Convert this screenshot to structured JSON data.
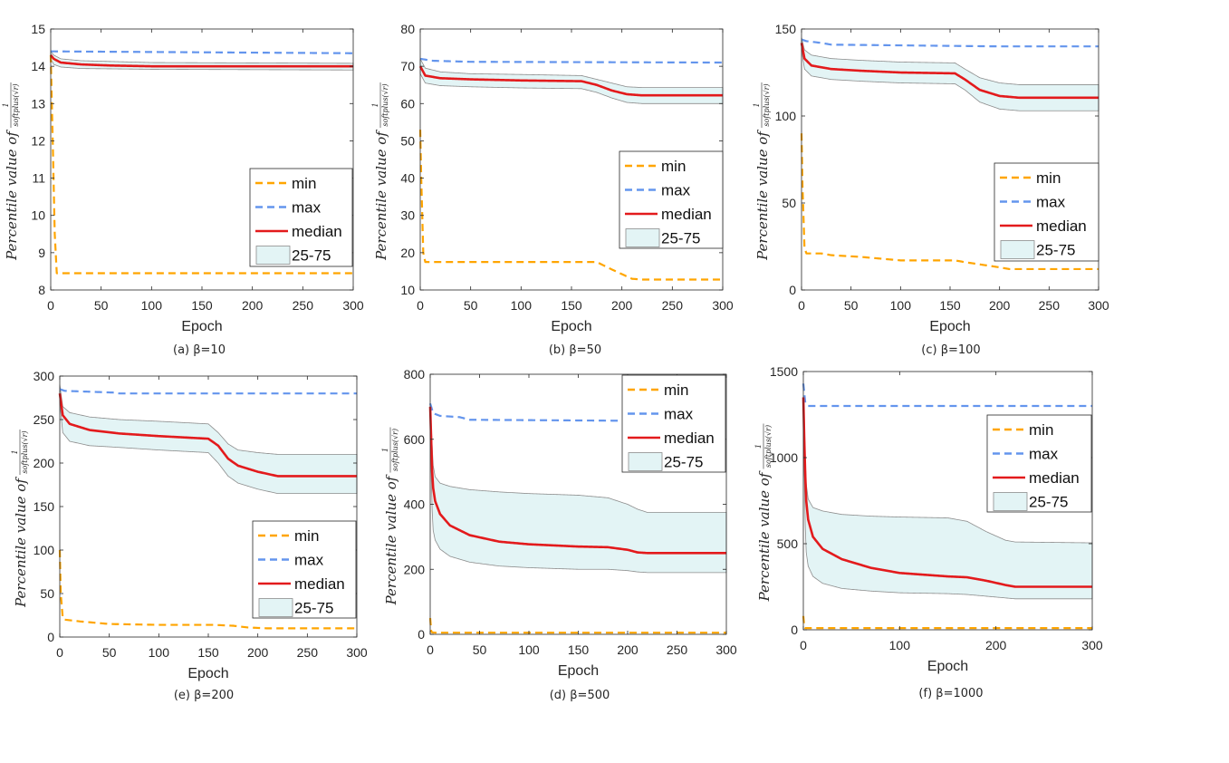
{
  "chart_data": [
    {
      "type": "line",
      "id": "a",
      "caption": "(a) β=10",
      "xlabel": "Epoch",
      "ylabel": "Percentile value of",
      "ylabel_fraction": "1 / softplus(√r)",
      "xlim": [
        0,
        300
      ],
      "ylim": [
        8,
        15
      ],
      "xticks": [
        0,
        50,
        100,
        150,
        200,
        250,
        300
      ],
      "yticks": [
        8,
        9,
        10,
        11,
        12,
        13,
        14,
        15
      ],
      "legend": {
        "position": "lower-right",
        "labels": [
          "min",
          "max",
          "median",
          "25-75"
        ]
      },
      "series": [
        {
          "name": "min",
          "x": [
            0,
            2,
            4,
            6,
            300
          ],
          "y": [
            14.3,
            12,
            9.5,
            8.45,
            8.45
          ]
        },
        {
          "name": "max",
          "x": [
            0,
            300
          ],
          "y": [
            14.4,
            14.35
          ]
        },
        {
          "name": "median",
          "x": [
            0,
            3,
            10,
            30,
            60,
            100,
            150,
            200,
            300
          ],
          "y": [
            14.3,
            14.2,
            14.1,
            14.05,
            14.02,
            14.0,
            14.0,
            14.0,
            14.0
          ]
        },
        {
          "name": "p25",
          "x": [
            0,
            3,
            10,
            30,
            100,
            300
          ],
          "y": [
            14.2,
            14.05,
            13.98,
            13.94,
            13.92,
            13.9
          ]
        },
        {
          "name": "p75",
          "x": [
            0,
            3,
            10,
            30,
            100,
            300
          ],
          "y": [
            14.4,
            14.3,
            14.2,
            14.15,
            14.1,
            14.08
          ]
        }
      ]
    },
    {
      "type": "line",
      "id": "b",
      "caption": "(b) β=50",
      "xlabel": "Epoch",
      "ylabel": "Percentile value of",
      "ylabel_fraction": "1 / softplus(√r)",
      "xlim": [
        0,
        300
      ],
      "ylim": [
        10,
        80
      ],
      "xticks": [
        0,
        50,
        100,
        150,
        200,
        250,
        300
      ],
      "yticks": [
        10,
        20,
        30,
        40,
        50,
        60,
        70,
        80
      ],
      "legend": {
        "position": "lower-right",
        "labels": [
          "min",
          "max",
          "median",
          "25-75"
        ]
      },
      "series": [
        {
          "name": "min",
          "x": [
            0,
            1,
            3,
            5,
            175,
            190,
            210,
            220,
            300
          ],
          "y": [
            53,
            40,
            20,
            17.5,
            17.5,
            15.5,
            13,
            12.8,
            12.8
          ]
        },
        {
          "name": "max",
          "x": [
            0,
            5,
            10,
            50,
            300
          ],
          "y": [
            72,
            71.8,
            71.5,
            71.2,
            71
          ]
        },
        {
          "name": "median",
          "x": [
            0,
            5,
            20,
            50,
            100,
            160,
            175,
            190,
            205,
            220,
            300
          ],
          "y": [
            70,
            67.5,
            66.8,
            66.5,
            66.2,
            66,
            65,
            63.5,
            62.5,
            62.2,
            62.2
          ]
        },
        {
          "name": "p25",
          "x": [
            0,
            5,
            20,
            50,
            100,
            160,
            175,
            190,
            205,
            220,
            300
          ],
          "y": [
            68,
            65.5,
            64.8,
            64.5,
            64.2,
            64,
            63,
            61.5,
            60.3,
            60,
            60
          ]
        },
        {
          "name": "p75",
          "x": [
            0,
            5,
            20,
            50,
            100,
            160,
            175,
            190,
            205,
            220,
            300
          ],
          "y": [
            72,
            69.5,
            68.5,
            68,
            67.8,
            67.5,
            66.5,
            65.5,
            64.5,
            64.3,
            64.3
          ]
        }
      ]
    },
    {
      "type": "line",
      "id": "c",
      "caption": "(c) β=100",
      "xlabel": "Epoch",
      "ylabel": "Percentile value of",
      "ylabel_fraction": "1 / softplus(√r)",
      "xlim": [
        0,
        300
      ],
      "ylim": [
        0,
        150
      ],
      "xticks": [
        0,
        50,
        100,
        150,
        200,
        250,
        300
      ],
      "yticks": [
        0,
        50,
        100,
        150
      ],
      "legend": {
        "position": "lower-right",
        "labels": [
          "min",
          "max",
          "median",
          "25-75"
        ]
      },
      "series": [
        {
          "name": "min",
          "x": [
            0,
            1,
            3,
            5,
            20,
            30,
            60,
            100,
            155,
            165,
            200,
            210,
            300
          ],
          "y": [
            90,
            60,
            24,
            21,
            21,
            20,
            19,
            17,
            17,
            16,
            13,
            12,
            12
          ]
        },
        {
          "name": "max",
          "x": [
            0,
            5,
            20,
            30,
            200,
            300
          ],
          "y": [
            144,
            143,
            142,
            141,
            140,
            140
          ]
        },
        {
          "name": "median",
          "x": [
            0,
            3,
            10,
            30,
            60,
            100,
            155,
            165,
            180,
            200,
            220,
            300
          ],
          "y": [
            142,
            133,
            129,
            127,
            126,
            125,
            124.5,
            121,
            115,
            111.5,
            110.5,
            110.5
          ]
        },
        {
          "name": "p25",
          "x": [
            0,
            3,
            10,
            30,
            60,
            100,
            155,
            165,
            180,
            200,
            220,
            300
          ],
          "y": [
            138,
            127,
            123,
            121,
            120,
            119,
            118.5,
            115,
            108,
            104,
            103,
            103
          ]
        },
        {
          "name": "p75",
          "x": [
            0,
            3,
            10,
            30,
            60,
            100,
            155,
            165,
            180,
            200,
            220,
            300
          ],
          "y": [
            145,
            138,
            135,
            133,
            132,
            131,
            130.5,
            127,
            122,
            119,
            118,
            118
          ]
        }
      ]
    },
    {
      "type": "line",
      "id": "e",
      "caption": "(e) β=200",
      "xlabel": "Epoch",
      "ylabel": "Percentile value of",
      "ylabel_fraction": "1 / softplus(√r)",
      "xlim": [
        0,
        300
      ],
      "ylim": [
        0,
        300
      ],
      "xticks": [
        0,
        50,
        100,
        150,
        200,
        250,
        300
      ],
      "yticks": [
        0,
        50,
        100,
        150,
        200,
        250,
        300
      ],
      "legend": {
        "position": "lower-right",
        "labels": [
          "min",
          "max",
          "median",
          "25-75"
        ]
      },
      "series": [
        {
          "name": "min",
          "x": [
            0,
            1,
            3,
            5,
            20,
            50,
            100,
            155,
            175,
            190,
            210,
            300
          ],
          "y": [
            100,
            50,
            22,
            20,
            18,
            15,
            14,
            14,
            13,
            11,
            10,
            10
          ]
        },
        {
          "name": "max",
          "x": [
            0,
            5,
            30,
            55,
            60,
            300
          ],
          "y": [
            285,
            283,
            282,
            281,
            280,
            280
          ]
        },
        {
          "name": "median",
          "x": [
            0,
            3,
            10,
            30,
            60,
            100,
            150,
            160,
            170,
            180,
            200,
            220,
            300
          ],
          "y": [
            280,
            255,
            245,
            238,
            234,
            231,
            228,
            220,
            205,
            197,
            190,
            185,
            185
          ]
        },
        {
          "name": "p25",
          "x": [
            0,
            3,
            10,
            30,
            60,
            100,
            150,
            160,
            170,
            180,
            200,
            220,
            300
          ],
          "y": [
            270,
            235,
            225,
            220,
            218,
            215,
            212,
            200,
            185,
            177,
            170,
            165,
            165
          ]
        },
        {
          "name": "p75",
          "x": [
            0,
            3,
            10,
            30,
            60,
            100,
            150,
            160,
            170,
            180,
            200,
            220,
            300
          ],
          "y": [
            290,
            265,
            258,
            253,
            250,
            248,
            245,
            235,
            222,
            215,
            212,
            210,
            210
          ]
        }
      ]
    },
    {
      "type": "line",
      "id": "d",
      "caption": "(d) β=500",
      "xlabel": "Epoch",
      "ylabel": "Percentile value of",
      "ylabel_fraction": "1 / softplus(√r)",
      "xlim": [
        0,
        300
      ],
      "ylim": [
        0,
        800
      ],
      "xticks": [
        0,
        50,
        100,
        150,
        200,
        250,
        300
      ],
      "yticks": [
        0,
        200,
        400,
        600,
        800
      ],
      "legend": {
        "position": "top-right",
        "labels": [
          "min",
          "max",
          "median",
          "25-75"
        ]
      },
      "series": [
        {
          "name": "min",
          "x": [
            0,
            1,
            2,
            5,
            300
          ],
          "y": [
            50,
            10,
            6,
            5,
            5
          ]
        },
        {
          "name": "max",
          "x": [
            0,
            3,
            10,
            30,
            40,
            300
          ],
          "y": [
            710,
            680,
            672,
            668,
            660,
            655
          ]
        },
        {
          "name": "median",
          "x": [
            0,
            1,
            2,
            3,
            5,
            10,
            20,
            40,
            70,
            100,
            150,
            180,
            200,
            210,
            220,
            300
          ],
          "y": [
            700,
            600,
            500,
            450,
            410,
            370,
            335,
            305,
            285,
            277,
            270,
            268,
            260,
            252,
            250,
            250
          ]
        },
        {
          "name": "p25",
          "x": [
            0,
            1,
            2,
            3,
            5,
            10,
            20,
            40,
            70,
            100,
            150,
            180,
            200,
            210,
            220,
            300
          ],
          "y": [
            700,
            500,
            380,
            320,
            290,
            262,
            240,
            222,
            210,
            205,
            200,
            200,
            196,
            192,
            190,
            190
          ]
        },
        {
          "name": "p75",
          "x": [
            0,
            1,
            2,
            3,
            5,
            10,
            20,
            40,
            70,
            100,
            150,
            180,
            200,
            210,
            220,
            300
          ],
          "y": [
            710,
            650,
            580,
            520,
            485,
            465,
            455,
            445,
            438,
            433,
            428,
            420,
            400,
            385,
            375,
            375
          ]
        }
      ]
    },
    {
      "type": "line",
      "id": "f",
      "caption": "(f) β=1000",
      "xlabel": "Epoch",
      "ylabel": "Percentile value of",
      "ylabel_fraction": "1 / softplus(√r)",
      "xlim": [
        0,
        300
      ],
      "ylim": [
        0,
        1500
      ],
      "xticks": [
        0,
        100,
        200,
        300
      ],
      "yticks": [
        0,
        500,
        1000,
        1500
      ],
      "legend": {
        "position": "top-right",
        "labels": [
          "min",
          "max",
          "median",
          "25-75"
        ]
      },
      "series": [
        {
          "name": "min",
          "x": [
            0,
            1,
            2,
            300
          ],
          "y": [
            80,
            15,
            10,
            10
          ]
        },
        {
          "name": "max",
          "x": [
            0,
            2,
            5,
            300
          ],
          "y": [
            1430,
            1320,
            1300,
            1300
          ]
        },
        {
          "name": "median",
          "x": [
            0,
            1,
            2,
            3,
            5,
            10,
            20,
            40,
            70,
            100,
            150,
            170,
            190,
            210,
            220,
            300
          ],
          "y": [
            1350,
            1100,
            900,
            750,
            640,
            540,
            470,
            410,
            360,
            330,
            310,
            305,
            285,
            260,
            250,
            250
          ]
        },
        {
          "name": "p25",
          "x": [
            0,
            1,
            2,
            3,
            5,
            10,
            20,
            40,
            70,
            100,
            150,
            170,
            190,
            210,
            220,
            300
          ],
          "y": [
            1350,
            900,
            600,
            450,
            370,
            310,
            270,
            240,
            225,
            215,
            210,
            205,
            195,
            185,
            180,
            180
          ]
        },
        {
          "name": "p75",
          "x": [
            0,
            1,
            2,
            3,
            5,
            10,
            20,
            40,
            70,
            100,
            150,
            170,
            190,
            210,
            220,
            300
          ],
          "y": [
            1350,
            1250,
            1000,
            850,
            760,
            710,
            690,
            670,
            660,
            655,
            650,
            630,
            570,
            520,
            510,
            505
          ]
        }
      ]
    }
  ],
  "colors": {
    "min": "#FFA500",
    "max": "#6495ED",
    "median": "#E31A1C",
    "band": "#E3F4F5",
    "band_edge": "#8C8C8C"
  }
}
